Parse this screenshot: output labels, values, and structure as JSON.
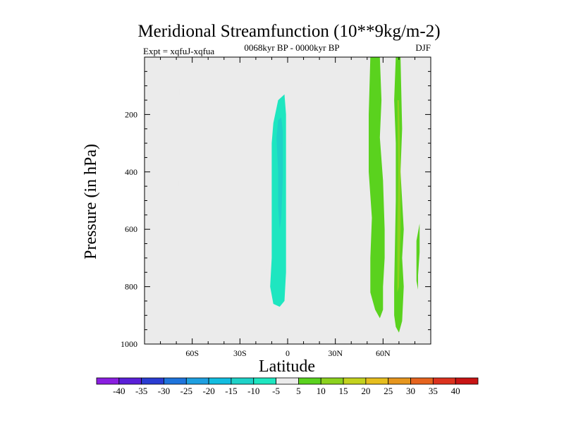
{
  "chart_data": {
    "type": "contour",
    "title": "Meridional Streamfunction (10**9kg/m-2)",
    "subtitle": "0068kyr BP - 0000kyr BP",
    "experiment_label": "Expt = xqfuJ-xqfua",
    "season_label": "DJF",
    "xlabel": "Latitude",
    "ylabel": "Pressure (in hPa)",
    "xlim": [
      -90,
      90
    ],
    "ylim": [
      1000,
      0
    ],
    "x_ticks": [
      {
        "value": -60,
        "label": "60S"
      },
      {
        "value": -30,
        "label": "30S"
      },
      {
        "value": 0,
        "label": "0"
      },
      {
        "value": 30,
        "label": "30N"
      },
      {
        "value": 60,
        "label": "60N"
      }
    ],
    "y_ticks": [
      {
        "value": 200,
        "label": "200"
      },
      {
        "value": 400,
        "label": "400"
      },
      {
        "value": 600,
        "label": "600"
      },
      {
        "value": 800,
        "label": "800"
      },
      {
        "value": 1000,
        "label": "1000"
      }
    ],
    "colorbar": {
      "levels": [
        "-40",
        "-35",
        "-30",
        "-25",
        "-20",
        "-15",
        "-10",
        "-5",
        "5",
        "10",
        "15",
        "20",
        "25",
        "30",
        "35",
        "40"
      ],
      "colors": [
        "#8a1ee0",
        "#5a20d8",
        "#2a3cd2",
        "#1e74dc",
        "#1e9fe0",
        "#12bde0",
        "#1ed2c8",
        "#1ee6c0",
        "#ebebeb",
        "#5ad21e",
        "#8cd21e",
        "#c3d21e",
        "#e6be1e",
        "#e6961e",
        "#e6641e",
        "#dc321e",
        "#c81414"
      ]
    },
    "regions": [
      {
        "name": "narrow-band-60s",
        "level": "-5",
        "points": [
          [
            -68,
            0
          ],
          [
            -67,
            0
          ],
          [
            -67,
            700
          ],
          [
            -67.5,
            860
          ],
          [
            -68,
            870
          ],
          [
            -68.5,
            860
          ],
          [
            -68.5,
            700
          ]
        ]
      },
      {
        "name": "southern-cell-outer",
        "level": "-5",
        "points": [
          [
            -13,
            250
          ],
          [
            -12,
            120
          ],
          [
            -6,
            90
          ],
          [
            0,
            95
          ],
          [
            5,
            110
          ],
          [
            10,
            170
          ],
          [
            12,
            190
          ],
          [
            14,
            190
          ],
          [
            16,
            240
          ],
          [
            14,
            250
          ],
          [
            10,
            270
          ],
          [
            10,
            330
          ],
          [
            6,
            355
          ],
          [
            10,
            410
          ],
          [
            8,
            440
          ],
          [
            10,
            480
          ],
          [
            5,
            500
          ],
          [
            4,
            600
          ],
          [
            5,
            760
          ],
          [
            3,
            800
          ],
          [
            4,
            850
          ],
          [
            6,
            900
          ],
          [
            8,
            960
          ],
          [
            4,
            960
          ],
          [
            0,
            920
          ],
          [
            -6,
            940
          ],
          [
            -10,
            930
          ],
          [
            -14,
            900
          ],
          [
            -14,
            820
          ],
          [
            -13,
            700
          ],
          [
            -14,
            600
          ],
          [
            -13,
            500
          ],
          [
            -14,
            400
          ],
          [
            -14,
            300
          ]
        ]
      },
      {
        "name": "southern-cell-core",
        "level": "-10",
        "points": [
          [
            -9,
            230
          ],
          [
            -6,
            150
          ],
          [
            -2,
            130
          ],
          [
            -1,
            200
          ],
          [
            -1,
            300
          ],
          [
            -1,
            450
          ],
          [
            -1,
            600
          ],
          [
            -1,
            750
          ],
          [
            -2,
            850
          ],
          [
            -5,
            870
          ],
          [
            -9,
            860
          ],
          [
            -11,
            800
          ],
          [
            -10,
            700
          ],
          [
            -10,
            600
          ],
          [
            -10,
            500
          ],
          [
            -10,
            400
          ],
          [
            -10,
            300
          ]
        ]
      },
      {
        "name": "southern-cell-inner",
        "level": "-15",
        "points": [
          [
            -7,
            280
          ],
          [
            -6,
            220
          ],
          [
            -4,
            210
          ],
          [
            -3,
            260
          ],
          [
            -3,
            420
          ],
          [
            -4,
            560
          ],
          [
            -5,
            600
          ],
          [
            -6,
            520
          ],
          [
            -6,
            400
          ]
        ]
      },
      {
        "name": "upper-jet-column",
        "level": "-5",
        "points": [
          [
            6,
            0
          ],
          [
            11,
            0
          ],
          [
            12,
            100
          ],
          [
            10,
            140
          ],
          [
            5,
            120
          ],
          [
            6,
            60
          ]
        ]
      },
      {
        "name": "small-cell-30n-a",
        "level": "-5",
        "points": [
          [
            25,
            780
          ],
          [
            26,
            700
          ],
          [
            27,
            650
          ],
          [
            28,
            720
          ],
          [
            29,
            800
          ],
          [
            28,
            810
          ],
          [
            27,
            760
          ]
        ]
      },
      {
        "name": "small-cell-30n-b",
        "level": "-5",
        "points": [
          [
            31,
            700
          ],
          [
            33,
            640
          ],
          [
            34,
            720
          ],
          [
            33,
            780
          ],
          [
            34,
            830
          ],
          [
            32,
            810
          ],
          [
            31,
            780
          ]
        ]
      },
      {
        "name": "northern-cell-outer",
        "level": "5",
        "points": [
          [
            52,
            0
          ],
          [
            58,
            0
          ],
          [
            59,
            150
          ],
          [
            58,
            280
          ],
          [
            60,
            430
          ],
          [
            61,
            600
          ],
          [
            61,
            700
          ],
          [
            60,
            800
          ],
          [
            60,
            880
          ],
          [
            58,
            910
          ],
          [
            55,
            880
          ],
          [
            52,
            820
          ],
          [
            52,
            700
          ],
          [
            53,
            560
          ],
          [
            51,
            400
          ],
          [
            51,
            200
          ]
        ]
      },
      {
        "name": "northern-cell-right",
        "level": "5",
        "points": [
          [
            68,
            0
          ],
          [
            71,
            0
          ],
          [
            72,
            250
          ],
          [
            71,
            400
          ],
          [
            72,
            500
          ],
          [
            73,
            600
          ],
          [
            72,
            700
          ],
          [
            73,
            800
          ],
          [
            72,
            920
          ],
          [
            70,
            960
          ],
          [
            68,
            940
          ],
          [
            67,
            900
          ],
          [
            67,
            800
          ],
          [
            68,
            500
          ],
          [
            68,
            300
          ],
          [
            67,
            150
          ]
        ]
      },
      {
        "name": "northern-cell-right-core",
        "level": "10",
        "points": [
          [
            69,
            150
          ],
          [
            70,
            150
          ],
          [
            71,
            400
          ],
          [
            71,
            600
          ],
          [
            70,
            800
          ],
          [
            69,
            820
          ],
          [
            69,
            600
          ],
          [
            69.5,
            400
          ]
        ]
      },
      {
        "name": "narrow-band-80n",
        "level": "5",
        "points": [
          [
            81,
            640
          ],
          [
            83,
            580
          ],
          [
            83,
            680
          ],
          [
            82,
            760
          ],
          [
            82,
            810
          ],
          [
            81,
            780
          ]
        ]
      }
    ],
    "background_regions": [
      {
        "name": "gap-northern-cell-a",
        "points": [
          [
            61,
            0
          ],
          [
            64,
            0
          ],
          [
            64,
            150
          ],
          [
            62,
            160
          ],
          [
            61,
            100
          ]
        ]
      },
      {
        "name": "gap-northern-cell-b",
        "points": [
          [
            65,
            0
          ],
          [
            67,
            0
          ],
          [
            67,
            120
          ],
          [
            66,
            130
          ]
        ]
      },
      {
        "name": "gap-southern-cell",
        "points": [
          [
            8,
            280
          ],
          [
            11,
            280
          ],
          [
            11,
            340
          ],
          [
            8,
            340
          ],
          [
            9,
            320
          ]
        ]
      }
    ]
  }
}
